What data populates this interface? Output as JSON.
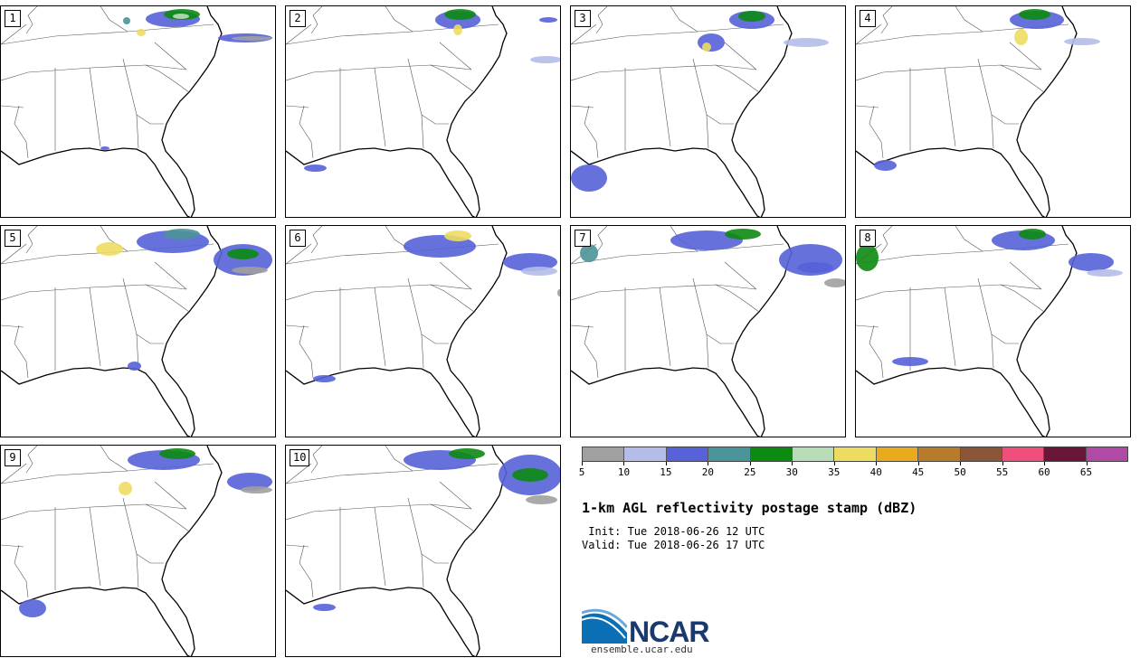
{
  "panels": [
    {
      "label": "1"
    },
    {
      "label": "2"
    },
    {
      "label": "3"
    },
    {
      "label": "4"
    },
    {
      "label": "5"
    },
    {
      "label": "6"
    },
    {
      "label": "7"
    },
    {
      "label": "8"
    },
    {
      "label": "9"
    },
    {
      "label": "10"
    }
  ],
  "colorbar": {
    "colors": [
      "#a0a0a0",
      "#b4bde9",
      "#5762d8",
      "#4b9499",
      "#0d8a12",
      "#b9dcb8",
      "#eedc62",
      "#e9aa1c",
      "#b67c2c",
      "#8b5538",
      "#f04f7c",
      "#6b1538",
      "#b04aa6"
    ],
    "ticks": [
      "5",
      "10",
      "15",
      "20",
      "25",
      "30",
      "35",
      "40",
      "45",
      "50",
      "55",
      "60",
      "65"
    ]
  },
  "title": "1-km AGL reflectivity postage stamp (dBZ)",
  "init": " Init: Tue 2018-06-26 12 UTC",
  "valid": "Valid: Tue 2018-06-26 17 UTC",
  "logo": {
    "name": "NCAR",
    "url": "ensemble.ucar.edu"
  }
}
